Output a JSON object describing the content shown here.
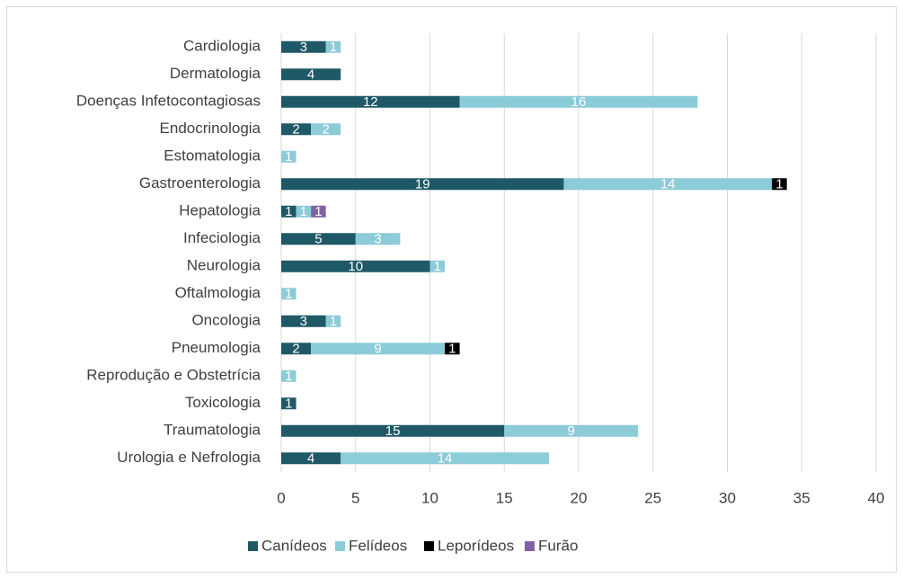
{
  "chart_data": {
    "type": "stacked_bar_horizontal",
    "categories": [
      "Cardiologia",
      "Dermatologia",
      "Doenças Infetocontagiosas",
      "Endocrinologia",
      "Estomatologia",
      "Gastroenterologia",
      "Hepatologia",
      "Infeciologia",
      "Neurologia",
      "Oftalmologia",
      "Oncologia",
      "Pneumologia",
      "Reprodução e Obstetrícia",
      "Toxicologia",
      "Traumatologia",
      "Urologia e Nefrologia"
    ],
    "series": [
      {
        "name": "Canídeos",
        "color": "#1f5866",
        "values": [
          3,
          4,
          12,
          2,
          null,
          19,
          1,
          5,
          10,
          null,
          3,
          2,
          null,
          1,
          15,
          4
        ]
      },
      {
        "name": "Felídeos",
        "color": "#8ccbd8",
        "values": [
          1,
          null,
          16,
          2,
          1,
          14,
          1,
          3,
          1,
          1,
          1,
          9,
          1,
          null,
          9,
          14
        ]
      },
      {
        "name": "Leporídeos",
        "color": "#000000",
        "values": [
          null,
          null,
          null,
          null,
          null,
          1,
          null,
          null,
          null,
          null,
          null,
          1,
          null,
          null,
          null,
          null
        ]
      },
      {
        "name": "Furão",
        "color": "#8064a2",
        "values": [
          null,
          null,
          null,
          null,
          null,
          null,
          1,
          null,
          null,
          null,
          null,
          null,
          null,
          null,
          null,
          null
        ]
      }
    ],
    "xlim": [
      0,
      40
    ],
    "xticks": [
      0,
      5,
      10,
      15,
      20,
      25,
      30,
      35,
      40
    ],
    "grid": true,
    "legend": "bottom"
  }
}
